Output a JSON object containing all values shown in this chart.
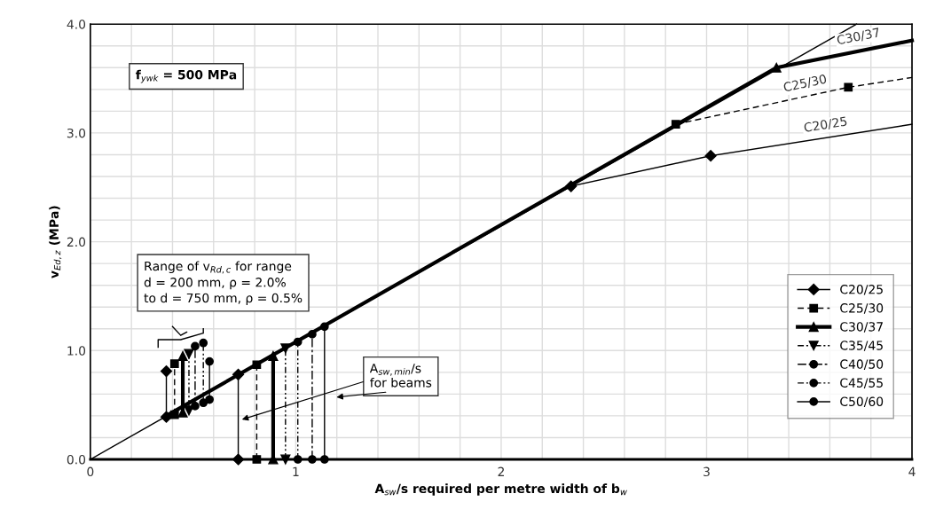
{
  "chart_data": {
    "type": "line",
    "xlabel": "A$_{sw}$/s required per metre width of b$_{w}$",
    "ylabel": "v$_{Ed,z}$ (MPa)",
    "xlim": [
      0,
      4
    ],
    "ylim": [
      0,
      4
    ],
    "xticks": [
      0,
      {
        "value": 0.2,
        "label": null
      },
      {
        "value": 0.4,
        "label": null
      },
      {
        "value": 0.6,
        "label": null
      },
      {
        "value": 0.8,
        "label": null
      },
      1,
      {
        "value": 1.2,
        "label": null
      },
      {
        "value": 1.4,
        "label": null
      },
      {
        "value": 1.6,
        "label": null
      },
      {
        "value": 1.8,
        "label": null
      },
      2,
      {
        "value": 2.2,
        "label": null
      },
      {
        "value": 2.4,
        "label": null
      },
      {
        "value": 2.6,
        "label": null
      },
      {
        "value": 2.8,
        "label": null
      },
      3,
      {
        "value": 3.2,
        "label": null
      },
      {
        "value": 3.4,
        "label": null
      },
      {
        "value": 3.6,
        "label": null
      },
      {
        "value": 3.8,
        "label": null
      },
      4
    ],
    "yticks": [
      {
        "value": 0,
        "label": "0.0"
      },
      {
        "value": 0.2,
        "label": null
      },
      {
        "value": 0.4,
        "label": null
      },
      {
        "value": 0.6,
        "label": null
      },
      {
        "value": 0.8,
        "label": null
      },
      {
        "value": 1,
        "label": "1.0"
      },
      {
        "value": 1.2,
        "label": null
      },
      {
        "value": 1.4,
        "label": null
      },
      {
        "value": 1.6,
        "label": null
      },
      {
        "value": 1.8,
        "label": null
      },
      {
        "value": 2,
        "label": "2.0"
      },
      {
        "value": 2.2,
        "label": null
      },
      {
        "value": 2.4,
        "label": null
      },
      {
        "value": 2.6,
        "label": null
      },
      {
        "value": 2.8,
        "label": null
      },
      {
        "value": 3,
        "label": "3.0"
      },
      {
        "value": 3.2,
        "label": null
      },
      {
        "value": 3.4,
        "label": null
      },
      {
        "value": 3.6,
        "label": null
      },
      {
        "value": 3.8,
        "label": null
      },
      {
        "value": 4,
        "label": "4.0"
      }
    ],
    "grid": true,
    "legend": "bottom right",
    "series": [
      {
        "color": "#000000",
        "line_style": "solid",
        "x": [
          0,
          3.73
        ],
        "values": [
          0,
          4.0
        ]
      },
      {
        "color": "#000000",
        "line_style": "solid",
        "x": [
          0.37,
          3.34
        ],
        "values": [
          0.4,
          3.6
        ]
      },
      {
        "color": "#000000",
        "line_style": "solid",
        "x": [
          3.02,
          4
        ],
        "values": [
          2.79,
          3.08
        ]
      },
      {
        "color": "#000000",
        "line_style": "dashed",
        "x": [
          3.69,
          4
        ],
        "values": [
          3.42,
          3.51
        ]
      },
      {
        "color": "#000000",
        "line_style": "solid",
        "x": [
          3.34,
          4
        ],
        "values": [
          3.6,
          3.85
        ]
      },
      {
        "name": "C20/25",
        "color": "#000000",
        "line_style": "solid",
        "marker": "diamond",
        "x": [
          0.37,
          0.37,
          null,
          0.72,
          0.72,
          null,
          2.34,
          3.02
        ],
        "values": [
          0.39,
          0.81,
          null,
          0,
          0.78,
          null,
          2.51,
          2.79
        ]
      },
      {
        "name": "C25/30",
        "color": "#000000",
        "line_style": "dashed",
        "marker": "square",
        "x": [
          0.41,
          0.41,
          null,
          0.81,
          0.81,
          null,
          2.85,
          3.69
        ],
        "values": [
          0.41,
          0.88,
          null,
          0,
          0.87,
          null,
          3.08,
          3.42
        ]
      },
      {
        "name": "C30/37",
        "color": "#000000",
        "line_style": "solid",
        "marker": "triangle",
        "x": [
          0.45,
          0.45,
          null,
          0.89,
          0.89,
          null,
          3.34
        ],
        "values": [
          0.43,
          0.95,
          null,
          0,
          0.95,
          null,
          3.6
        ]
      },
      {
        "name": "C35/45",
        "color": "#000000",
        "line_style": "dashdotdot",
        "marker": "triangle_down",
        "x": [
          0.48,
          0.48,
          null,
          0.95,
          0.95
        ],
        "values": [
          0.45,
          0.97,
          null,
          0,
          1.02
        ]
      },
      {
        "name": "C40/50",
        "color": "#000000",
        "line_style": "dashdot",
        "marker": "circle",
        "x": [
          0.51,
          0.51,
          null,
          1.08,
          1.08
        ],
        "values": [
          0.49,
          1.04,
          null,
          0,
          1.15
        ]
      },
      {
        "name": "C45/55",
        "color": "#000000",
        "line_style": "dashdotdot",
        "marker": "circle",
        "x": [
          0.55,
          0.55,
          null,
          1.01,
          1.01
        ],
        "values": [
          0.52,
          1.07,
          null,
          0,
          1.08
        ]
      },
      {
        "name": "C50/60",
        "color": "#000000",
        "line_style": "solid",
        "marker": "circle",
        "x": [
          0.58,
          0.58,
          null,
          1.14,
          1.14
        ],
        "values": [
          0.55,
          0.9,
          null,
          0,
          1.22
        ]
      }
    ],
    "annotations": [
      "f$_{ywk}$ = 500 MPa",
      "Range of v$_{Rd,c}$ for range\nd = 200 mm, ρ = 2.0%\nto d = 750 mm, ρ = 0.5%",
      "A$_{sw,min}$/s\nfor beams",
      "C30/37",
      "C25/30",
      "C20/25"
    ]
  }
}
